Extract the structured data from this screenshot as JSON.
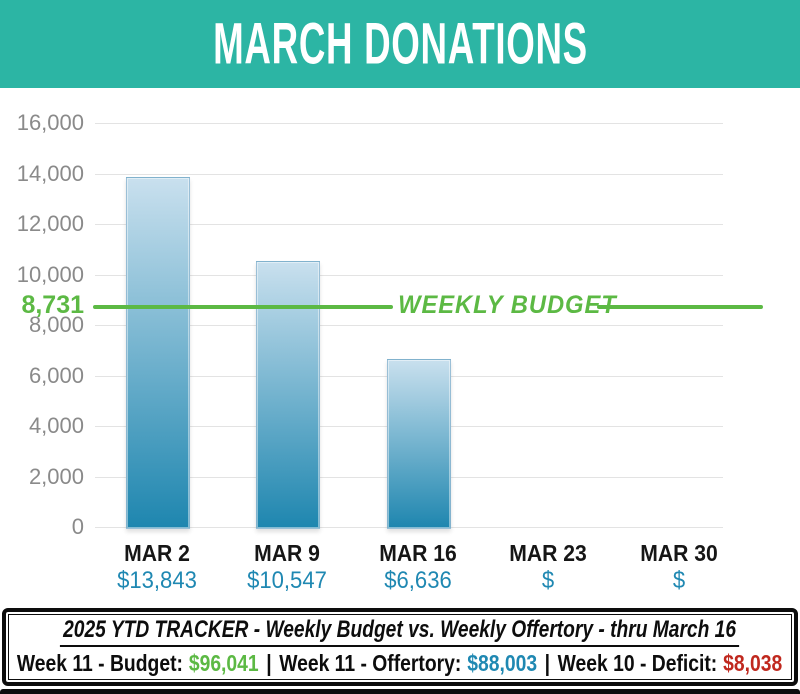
{
  "header": {
    "title": "MARCH DONATIONS"
  },
  "colors": {
    "header_bg": "#2cb5a4",
    "green": "#5cb944",
    "blue": "#1f88b2",
    "red": "#c0281e",
    "bar_top": "#c9e0ee",
    "bar_bottom": "#1e86af",
    "axis_gray": "#8a8a8a"
  },
  "chart_data": {
    "type": "bar",
    "title": "MARCH DONATIONS",
    "categories": [
      "MAR 2",
      "MAR 9",
      "MAR 16",
      "MAR 23",
      "MAR 30"
    ],
    "values": [
      13843,
      10547,
      6636,
      0,
      0
    ],
    "value_labels": [
      "$13,843",
      "$10,547",
      "$6,636",
      "$",
      "$"
    ],
    "xlabel": "",
    "ylabel": "",
    "ylim": [
      0,
      16000
    ],
    "y_ticks": [
      0,
      2000,
      4000,
      6000,
      8000,
      10000,
      12000,
      14000,
      16000
    ],
    "y_tick_labels": [
      "0",
      "2,000",
      "4,000",
      "6,000",
      "8,000",
      "10,000",
      "12,000",
      "14,000",
      "16,000"
    ],
    "grid": true,
    "legend": "none",
    "reference_line": {
      "value": 8731,
      "axis_label": "8,731",
      "line_label": "WEEKLY BUDGET"
    }
  },
  "tracker": {
    "title_line": "2025 YTD TRACKER  -  Weekly Budget vs. Weekly Offertory  -  thru March 16",
    "separator": "|",
    "entries": [
      {
        "label": "Week 11 - Budget:",
        "value": "$96,041",
        "color_key": "green"
      },
      {
        "label": "Week 11 - Offertory:",
        "value": "$88,003",
        "color_key": "blue"
      },
      {
        "label": "Week 10 - Deficit:",
        "value": "$8,038",
        "color_key": "red"
      }
    ]
  }
}
